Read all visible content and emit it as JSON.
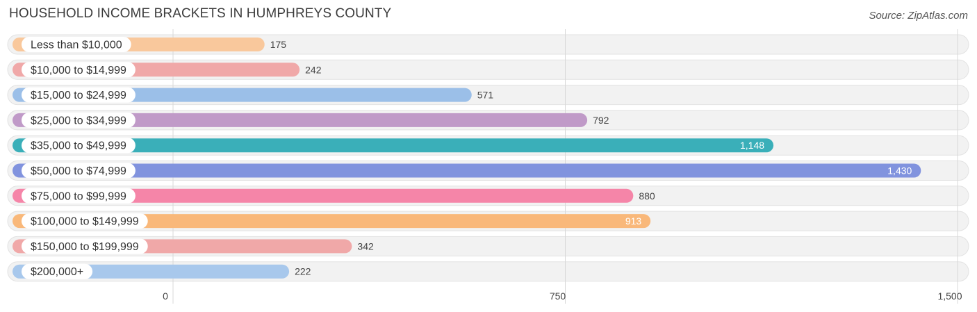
{
  "header": {
    "title": "HOUSEHOLD INCOME BRACKETS IN HUMPHREYS COUNTY",
    "source": "Source: ZipAtlas.com"
  },
  "chart_data": {
    "type": "bar",
    "orientation": "horizontal",
    "categories": [
      "Less than $10,000",
      "$10,000 to $14,999",
      "$15,000 to $24,999",
      "$25,000 to $34,999",
      "$35,000 to $49,999",
      "$50,000 to $74,999",
      "$75,000 to $99,999",
      "$100,000 to $149,999",
      "$150,000 to $199,999",
      "$200,000+"
    ],
    "values": [
      175,
      242,
      571,
      792,
      1148,
      1430,
      880,
      913,
      342,
      222
    ],
    "value_labels": [
      "175",
      "242",
      "571",
      "792",
      "1,148",
      "1,430",
      "880",
      "913",
      "342",
      "222"
    ],
    "colors": [
      "#f9c89c",
      "#f0a8a8",
      "#9bbfe8",
      "#c09ac8",
      "#3aafb9",
      "#8193de",
      "#f585a8",
      "#f9b87a",
      "#f0a8a8",
      "#a8c8ec"
    ],
    "xlim": [
      0,
      1500
    ],
    "xticks": [
      0,
      750,
      1500
    ],
    "xtick_labels": [
      "0",
      "750",
      "1,500"
    ],
    "grid": true,
    "legend": "none"
  }
}
